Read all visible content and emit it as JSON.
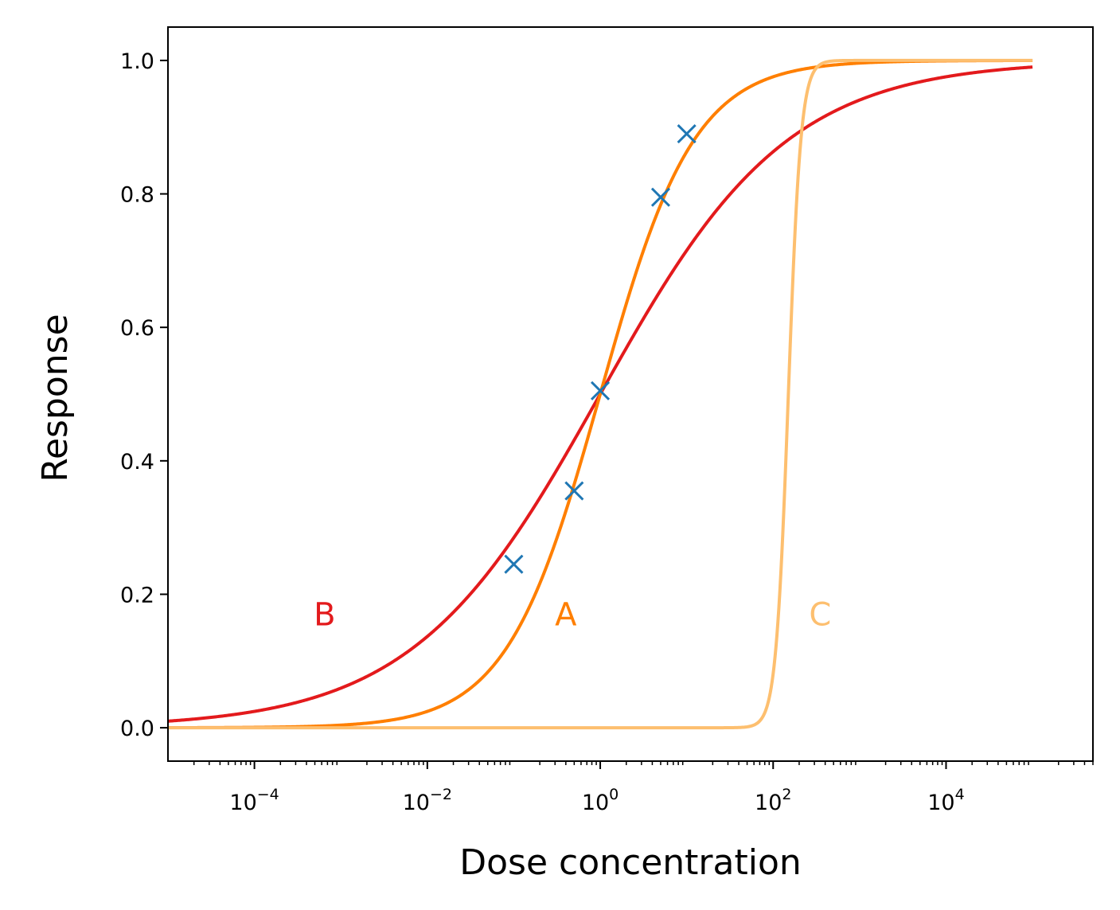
{
  "chart_data": {
    "type": "line",
    "xlabel": "Dose concentration",
    "ylabel": "Response",
    "xscale": "log",
    "xlim": [
      1e-05,
      500000.0
    ],
    "ylim": [
      -0.05,
      1.05
    ],
    "x_ticks": [
      {
        "value": 0.0001,
        "base": "10",
        "exp": "−4"
      },
      {
        "value": 0.01,
        "base": "10",
        "exp": "−2"
      },
      {
        "value": 1,
        "base": "10",
        "exp": "0"
      },
      {
        "value": 100,
        "base": "10",
        "exp": "2"
      },
      {
        "value": 10000,
        "base": "10",
        "exp": "4"
      }
    ],
    "y_ticks": [
      {
        "value": 0.0,
        "label": "0.0"
      },
      {
        "value": 0.2,
        "label": "0.2"
      },
      {
        "value": 0.4,
        "label": "0.4"
      },
      {
        "value": 0.6,
        "label": "0.6"
      },
      {
        "value": 0.8,
        "label": "0.8"
      },
      {
        "value": 1.0,
        "label": "1.0"
      }
    ],
    "grid": false,
    "series": [
      {
        "label": "B",
        "color": "#e31a1c",
        "ec50": 1,
        "hill": 0.4,
        "x_range": [
          1e-05,
          100000.0
        ],
        "label_x": 0.00065,
        "label_y": 0.17
      },
      {
        "label": "A",
        "color": "#ff7f00",
        "ec50": 1,
        "hill": 0.8,
        "x_range": [
          1e-05,
          100000.0
        ],
        "label_x": 0.4,
        "label_y": 0.17
      },
      {
        "label": "C",
        "color": "#fdbf6f",
        "ec50": 150,
        "hill": 6,
        "x_range": [
          1e-05,
          100000.0
        ],
        "label_x": 350,
        "label_y": 0.17
      }
    ],
    "points": {
      "color": "#1f77b4",
      "marker": "x",
      "x": [
        0.1,
        0.5,
        1.0,
        5.0,
        10.0
      ],
      "y": [
        0.245,
        0.355,
        0.505,
        0.795,
        0.89
      ]
    }
  }
}
